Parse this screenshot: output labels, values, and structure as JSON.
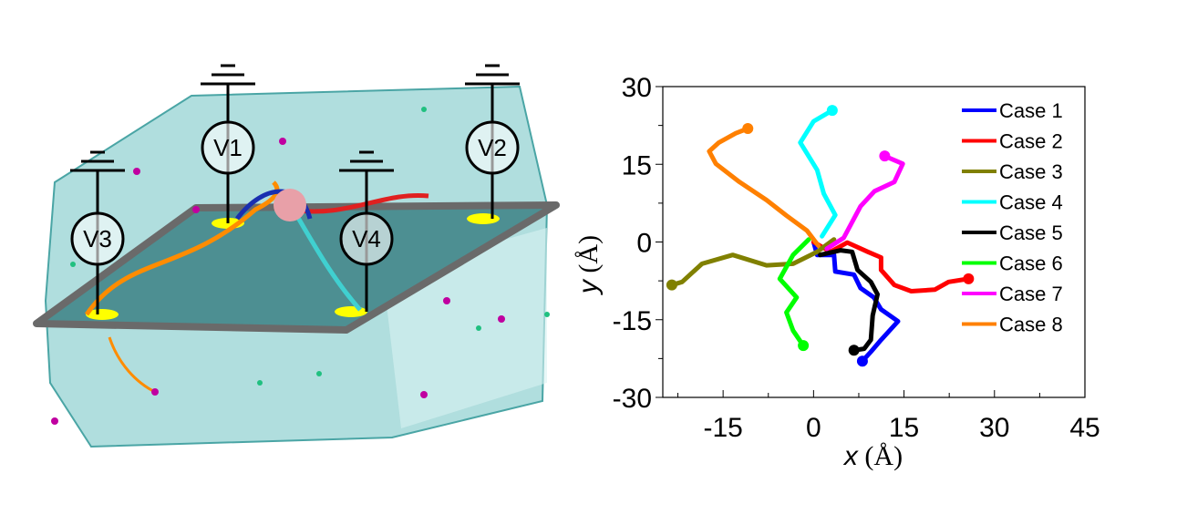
{
  "scene": {
    "electrode_labels": [
      "V1",
      "V2",
      "V3",
      "V4"
    ],
    "colors": {
      "water": "#6fc3c3",
      "membrane": "#6a6a6a",
      "electrode": "#ffff00"
    }
  },
  "chart_data": {
    "type": "line",
    "title": "",
    "xlabel_var": "x",
    "xlabel_unit": "(Å)",
    "ylabel_var": "y",
    "ylabel_unit": "(Å)",
    "xlim": [
      -25,
      45
    ],
    "ylim": [
      -30,
      30
    ],
    "xticks": [
      "-15",
      "0",
      "15",
      "30",
      "45"
    ],
    "yticks": [
      "30",
      "15",
      "0",
      "-15",
      "-30"
    ],
    "grid": false,
    "legend_placement": "top-right",
    "series": [
      {
        "name": "Case 1",
        "color": "#0000ff",
        "points": [
          [
            0,
            0
          ],
          [
            0.6,
            -2.5
          ],
          [
            3.4,
            -2.5
          ],
          [
            3.6,
            -5.7
          ],
          [
            6.7,
            -6.3
          ],
          [
            7.8,
            -8.9
          ],
          [
            10,
            -10.7
          ],
          [
            11.2,
            -13
          ],
          [
            14,
            -15.3
          ],
          [
            11.2,
            -18.9
          ],
          [
            9.5,
            -21.2
          ],
          [
            8.1,
            -23
          ]
        ]
      },
      {
        "name": "Case 2",
        "color": "#ff0000",
        "points": [
          [
            0,
            0
          ],
          [
            2.8,
            -1.9
          ],
          [
            5.6,
            -0.1
          ],
          [
            9,
            -1.9
          ],
          [
            11.2,
            -3
          ],
          [
            11.2,
            -5.4
          ],
          [
            13.4,
            -8.3
          ],
          [
            16.2,
            -9.5
          ],
          [
            20.1,
            -9.2
          ],
          [
            22.4,
            -7.7
          ],
          [
            25.7,
            -7.1
          ]
        ]
      },
      {
        "name": "Case 3",
        "color": "#808000",
        "points": [
          [
            3.4,
            0.5
          ],
          [
            0.6,
            -1.9
          ],
          [
            -3.4,
            -4.2
          ],
          [
            -7.8,
            -4.5
          ],
          [
            -13.4,
            -2.5
          ],
          [
            -18.5,
            -4.2
          ],
          [
            -21.8,
            -7.7
          ],
          [
            -23.5,
            -8.3
          ]
        ]
      },
      {
        "name": "Case 4",
        "color": "#00ffff",
        "points": [
          [
            1.4,
            1.1
          ],
          [
            3.6,
            5.2
          ],
          [
            1.7,
            9.3
          ],
          [
            0.6,
            13.9
          ],
          [
            -2.2,
            19.2
          ],
          [
            0,
            23.3
          ],
          [
            3.1,
            25.4
          ]
        ]
      },
      {
        "name": "Case 5",
        "color": "#000000",
        "points": [
          [
            1.1,
            -2.5
          ],
          [
            4.5,
            -1.6
          ],
          [
            6.4,
            -1.9
          ],
          [
            7.3,
            -5.4
          ],
          [
            9.5,
            -7.7
          ],
          [
            10.6,
            -10.1
          ],
          [
            9.8,
            -14.2
          ],
          [
            9.5,
            -18.9
          ],
          [
            8.4,
            -20.6
          ],
          [
            6.7,
            -20.9
          ]
        ]
      },
      {
        "name": "Case 6",
        "color": "#00ff00",
        "points": [
          [
            -0.8,
            0.5
          ],
          [
            -3.4,
            -2.5
          ],
          [
            -5.6,
            -7.1
          ],
          [
            -2.8,
            -10.7
          ],
          [
            -4.5,
            -13.6
          ],
          [
            -3.4,
            -17.1
          ],
          [
            -1.7,
            -20
          ]
        ]
      },
      {
        "name": "Case 7",
        "color": "#ff00ff",
        "points": [
          [
            2.2,
            -1.3
          ],
          [
            5,
            0.8
          ],
          [
            7.8,
            6.9
          ],
          [
            10.1,
            9.8
          ],
          [
            13.4,
            11.6
          ],
          [
            14.8,
            15.1
          ],
          [
            11.8,
            16.6
          ]
        ]
      },
      {
        "name": "Case 8",
        "color": "#ff8000",
        "points": [
          [
            0.8,
            -0.7
          ],
          [
            -1.1,
            2.2
          ],
          [
            -4.5,
            5.1
          ],
          [
            -7.8,
            8.1
          ],
          [
            -12.3,
            11.6
          ],
          [
            -16.2,
            15.1
          ],
          [
            -17.3,
            17.5
          ],
          [
            -15.7,
            19.2
          ],
          [
            -12.9,
            21
          ],
          [
            -10.9,
            21.9
          ]
        ]
      }
    ]
  }
}
